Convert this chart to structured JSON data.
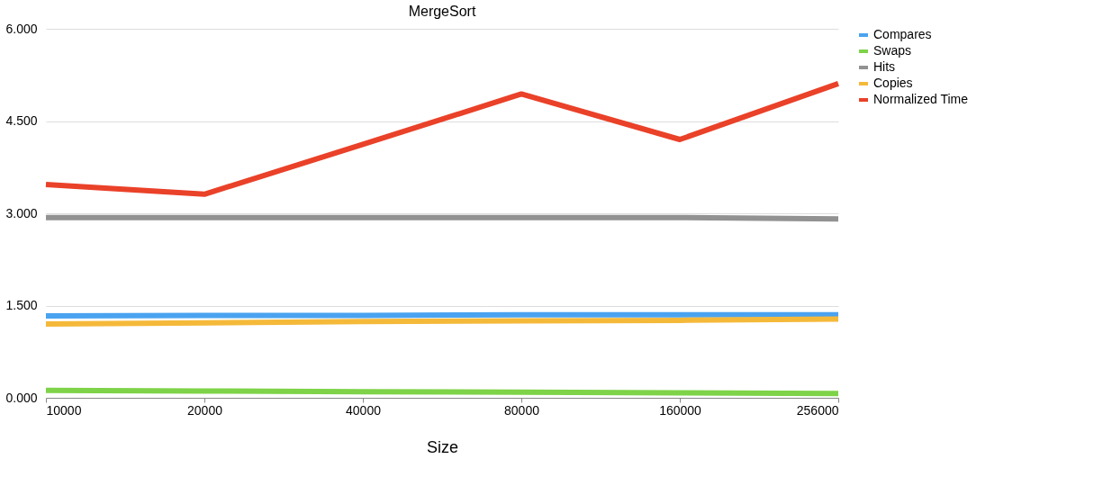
{
  "chart_data": {
    "type": "line",
    "title": "MergeSort",
    "xlabel": "Size",
    "categories": [
      "10000",
      "20000",
      "40000",
      "80000",
      "160000",
      "256000"
    ],
    "series": [
      {
        "name": "Compares",
        "color": "#4aa3f0",
        "values": [
          1.33,
          1.34,
          1.34,
          1.35,
          1.35,
          1.35
        ]
      },
      {
        "name": "Swaps",
        "color": "#7ed348",
        "values": [
          0.12,
          0.11,
          0.1,
          0.09,
          0.08,
          0.07
        ]
      },
      {
        "name": "Hits",
        "color": "#929292",
        "values": [
          2.93,
          2.93,
          2.93,
          2.93,
          2.93,
          2.91
        ]
      },
      {
        "name": "Copies",
        "color": "#f5b93a",
        "values": [
          1.2,
          1.22,
          1.24,
          1.25,
          1.26,
          1.28
        ]
      },
      {
        "name": "Normalized Time",
        "color": "#ea4129",
        "values": [
          3.47,
          3.31,
          4.12,
          4.94,
          4.2,
          5.11
        ]
      }
    ],
    "ylim": [
      0,
      6
    ],
    "yticks": [
      {
        "value": 0,
        "label": "0.000"
      },
      {
        "value": 1.5,
        "label": "1.500"
      },
      {
        "value": 3,
        "label": "3.000"
      },
      {
        "value": 4.5,
        "label": "4.500"
      },
      {
        "value": 6,
        "label": "6.000"
      }
    ],
    "grid": "y",
    "legend": "top right",
    "marker": "none",
    "line_style": "solid"
  }
}
